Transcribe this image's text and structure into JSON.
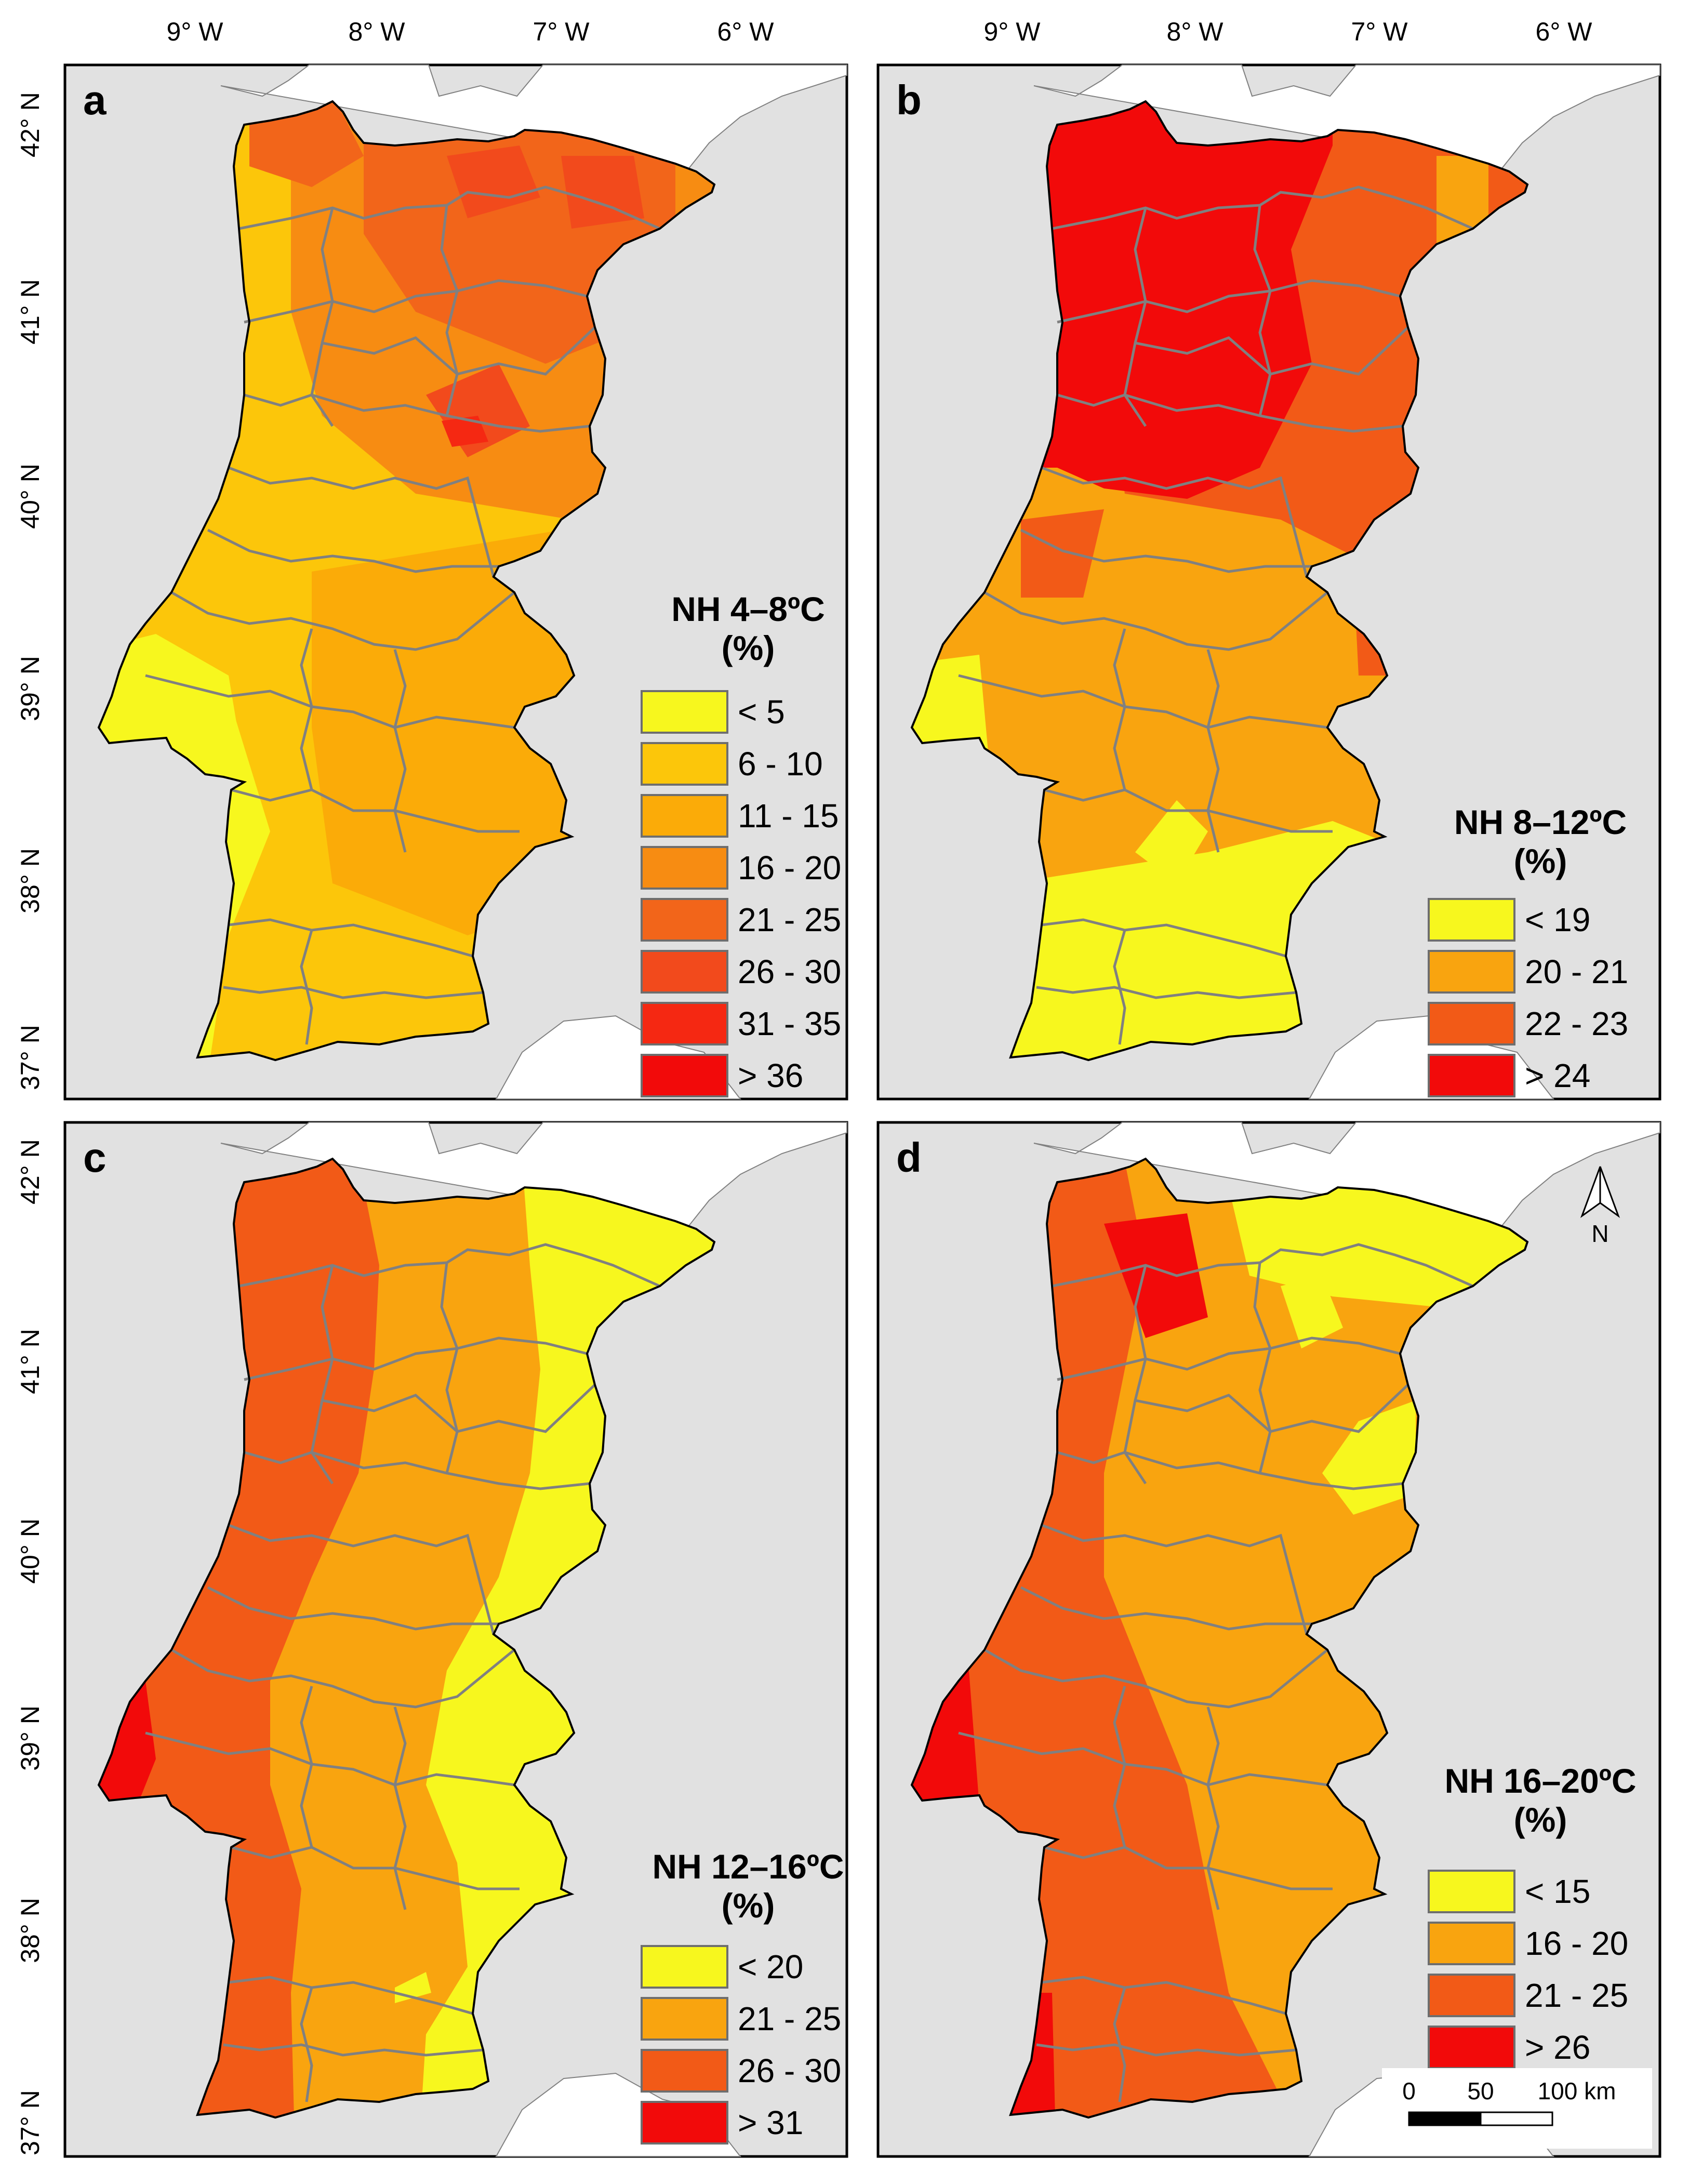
{
  "figure": {
    "top_longitudes": [
      "9° W",
      "8° W",
      "7° W",
      "6° W"
    ],
    "left_latitudes": [
      "42° N",
      "41° N",
      "40° N",
      "39° N",
      "38° N",
      "37° N"
    ],
    "colors": {
      "background": "#e1e1e1",
      "land": "#ffffff",
      "boundary": "#808080",
      "frame": "#000000"
    }
  },
  "panels": [
    {
      "label": "a",
      "legend_title": "NH 4–8ºC",
      "legend_unit": "(%)",
      "classes": [
        {
          "label": "< 5",
          "color": "#f7f71e"
        },
        {
          "label": "6 - 10",
          "color": "#fcc60a"
        },
        {
          "label": "11 - 15",
          "color": "#fbab08"
        },
        {
          "label": "16 - 20",
          "color": "#f78c12"
        },
        {
          "label": "21 - 25",
          "color": "#f2651a"
        },
        {
          "label": "26 - 30",
          "color": "#f24a1c"
        },
        {
          "label": "31 - 35",
          "color": "#f52812"
        },
        {
          "label": "> 36",
          "color": "#f20a0a"
        }
      ]
    },
    {
      "label": "b",
      "legend_title": "NH 8–12ºC",
      "legend_unit": "(%)",
      "classes": [
        {
          "label": "< 19",
          "color": "#f7f71e"
        },
        {
          "label": "20 - 21",
          "color": "#f9a40f"
        },
        {
          "label": "22 - 23",
          "color": "#f25a17"
        },
        {
          "label": "> 24",
          "color": "#f20a0a"
        }
      ]
    },
    {
      "label": "c",
      "legend_title": "NH 12–16ºC",
      "legend_unit": "(%)",
      "classes": [
        {
          "label": "< 20",
          "color": "#f7f71e"
        },
        {
          "label": "21 - 25",
          "color": "#f9a40f"
        },
        {
          "label": "26 - 30",
          "color": "#f25a17"
        },
        {
          "label": "> 31",
          "color": "#f20a0a"
        }
      ]
    },
    {
      "label": "d",
      "legend_title": "NH 16–20ºC",
      "legend_unit": "(%)",
      "classes": [
        {
          "label": "< 15",
          "color": "#f7f71e"
        },
        {
          "label": "16 - 20",
          "color": "#f9a40f"
        },
        {
          "label": "21 - 25",
          "color": "#f25a17"
        },
        {
          "label": "> 26",
          "color": "#f20a0a"
        }
      ]
    }
  ],
  "north_arrow": {
    "label": "N"
  },
  "scale_bar": {
    "ticks": [
      "0",
      "50",
      "100 km"
    ]
  }
}
